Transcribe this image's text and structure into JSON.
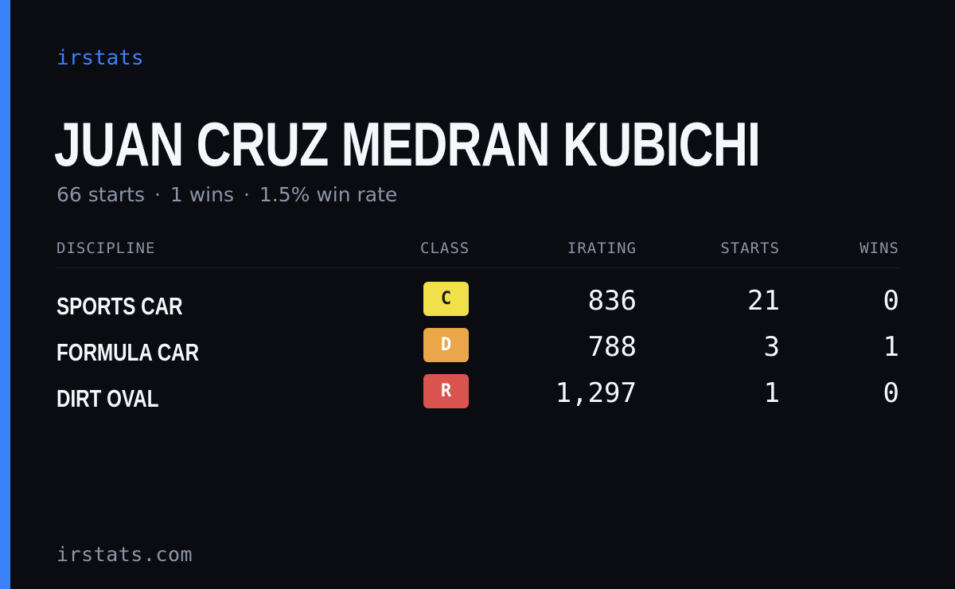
{
  "brand": "irstats",
  "driver": {
    "name": "JUAN CRUZ MEDRAN KUBICHI",
    "starts_text": "66 starts",
    "wins_text": "1 wins",
    "winrate_text": "1.5% win rate",
    "separator": "·"
  },
  "table": {
    "headers": {
      "discipline": "DISCIPLINE",
      "class": "CLASS",
      "irating": "IRATING",
      "starts": "STARTS",
      "wins": "WINS"
    },
    "rows": [
      {
        "discipline": "SPORTS CAR",
        "class": "C",
        "class_color": "#f1e04a",
        "class_text_color": "#1a1a1a",
        "irating": "836",
        "starts": "21",
        "wins": "0"
      },
      {
        "discipline": "FORMULA CAR",
        "class": "D",
        "class_color": "#eaa74a",
        "class_text_color": "#ffffff",
        "irating": "788",
        "starts": "3",
        "wins": "1"
      },
      {
        "discipline": "DIRT OVAL",
        "class": "R",
        "class_color": "#d9534f",
        "class_text_color": "#ffffff",
        "irating": "1,297",
        "starts": "1",
        "wins": "0"
      }
    ]
  },
  "footer": "irstats.com",
  "colors": {
    "background": "#0a0c12",
    "accent": "#3b82f6",
    "muted_text": "#8c95a6",
    "primary_text": "#f5f7fa"
  }
}
